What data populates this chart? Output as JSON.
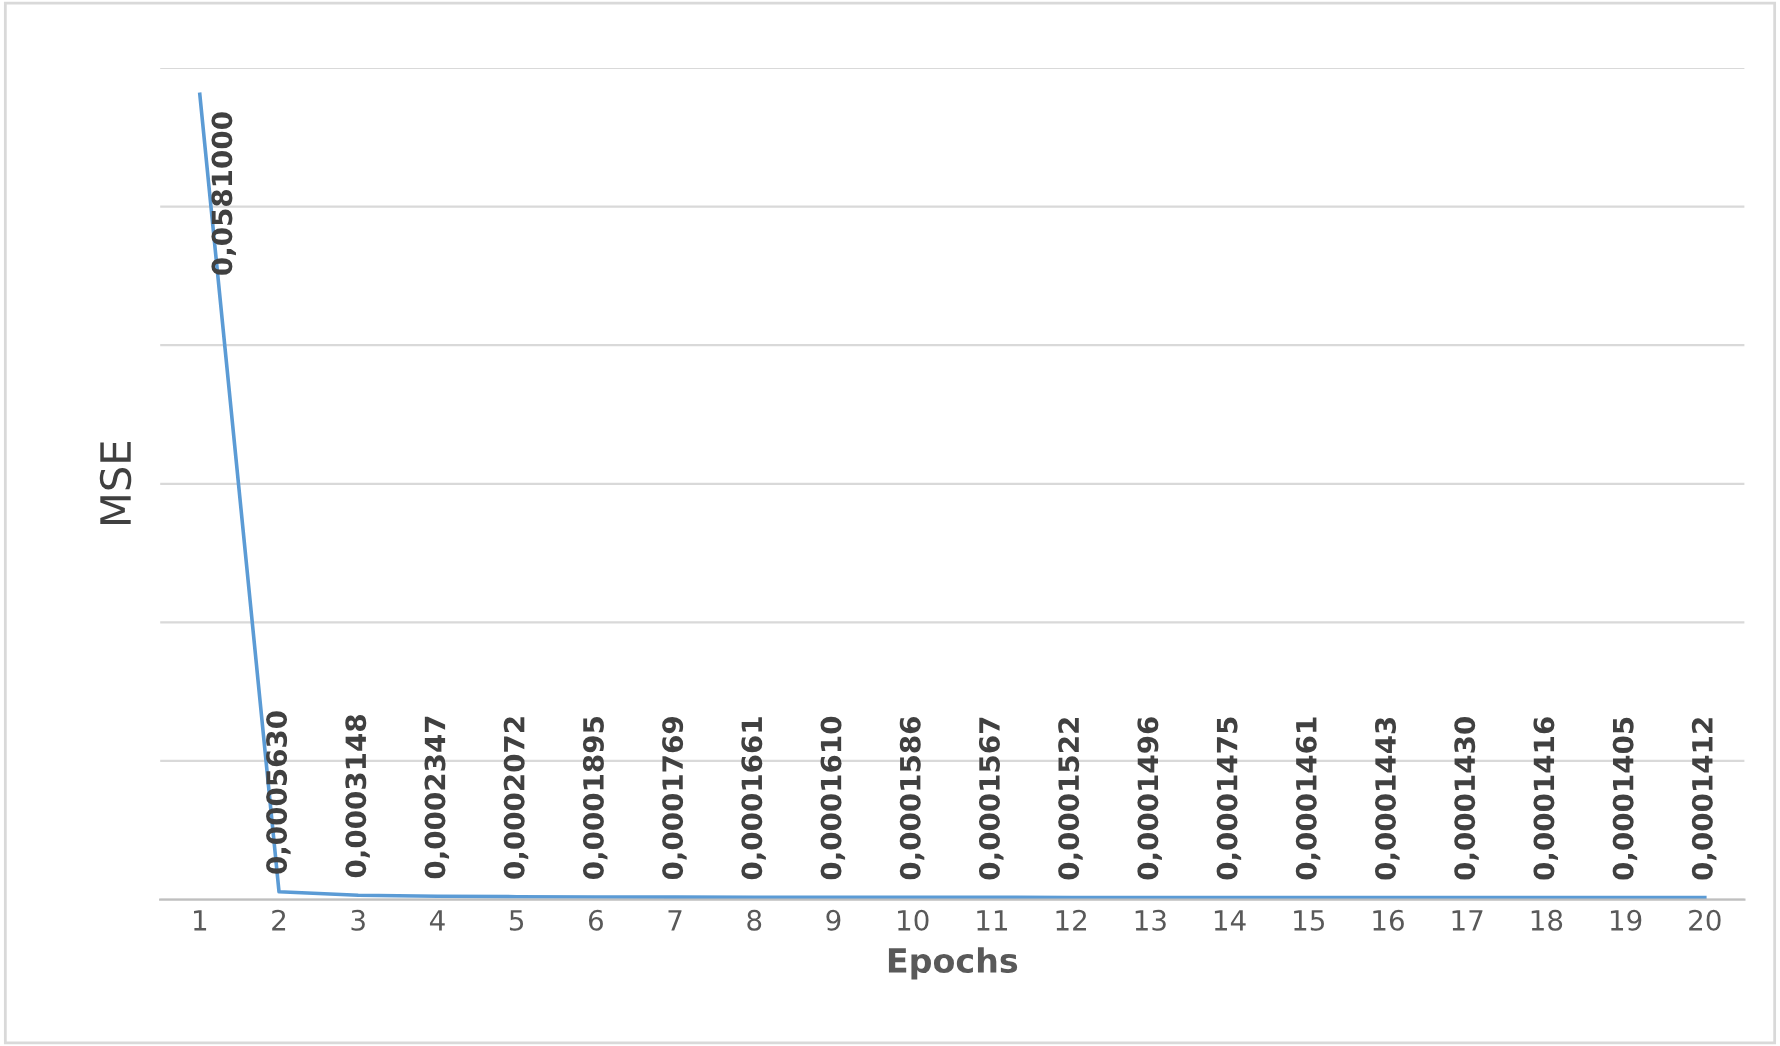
{
  "chart_data": {
    "type": "line",
    "xlabel": "Epochs",
    "ylabel": "MSE",
    "categories": [
      "1",
      "2",
      "3",
      "4",
      "5",
      "6",
      "7",
      "8",
      "9",
      "10",
      "11",
      "12",
      "13",
      "14",
      "15",
      "16",
      "17",
      "18",
      "19",
      "20"
    ],
    "series": [
      {
        "color": "#5b9bd5",
        "values": [
          0.0581,
          0.000563,
          0.0003148,
          0.0002347,
          0.0002072,
          0.0001895,
          0.0001769,
          0.0001661,
          0.000161,
          0.0001586,
          0.0001567,
          0.0001522,
          0.0001496,
          0.0001475,
          0.0001461,
          0.0001443,
          0.000143,
          0.0001416,
          0.0001405,
          0.0001412
        ],
        "value_labels": [
          "0,0581000",
          "0,0005630",
          "0,0003148",
          "0,0002347",
          "0,0002072",
          "0,0001895",
          "0,0001769",
          "0,0001661",
          "0,0001610",
          "0,0001586",
          "0,0001567",
          "0,0001522",
          "0,0001496",
          "0,0001475",
          "0,0001461",
          "0,0001443",
          "0,0001430",
          "0,0001416",
          "0,0001405",
          "0,0001412"
        ]
      }
    ],
    "ylim": [
      0,
      0.06
    ],
    "yticks": [
      {
        "value": 0,
        "label": null
      },
      {
        "value": 0.01,
        "label": null
      },
      {
        "value": 0.02,
        "label": null
      },
      {
        "value": 0.03,
        "label": null
      },
      {
        "value": 0.04,
        "label": null
      },
      {
        "value": 0.05,
        "label": null
      },
      {
        "value": 0.06,
        "label": null
      }
    ],
    "grid": "y",
    "legend": false,
    "marker": "none",
    "line_style": "solid"
  }
}
